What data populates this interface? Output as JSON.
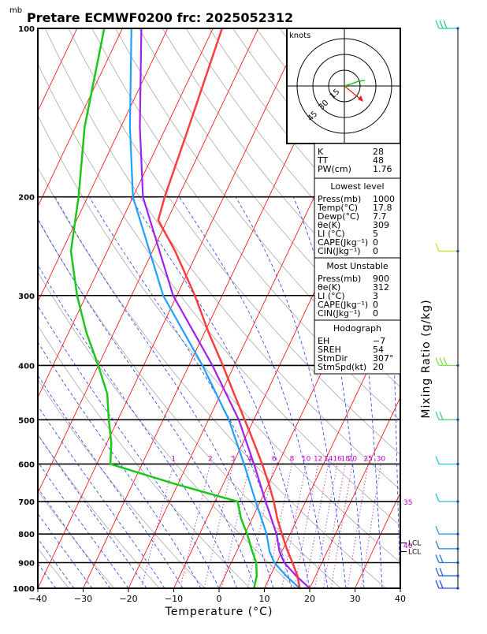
{
  "chart_data": {
    "type": "skew-t log-p sounding",
    "title": "Pretare ECMWF0200 frc: 2025052312",
    "pressure_unit_label": "mb",
    "xlabel": "Temperature (°C)",
    "right_label": "Mixing Ratio (g/kg)",
    "x_ticks": [
      -40,
      -30,
      -20,
      -10,
      0,
      10,
      20,
      30,
      40
    ],
    "xlim": [
      -40,
      40
    ],
    "p_ticks": [
      100,
      200,
      300,
      400,
      500,
      600,
      700,
      800,
      900,
      1000
    ],
    "plim": [
      100,
      1000
    ],
    "mixing_ratio_labels": [
      "1",
      "2",
      "3",
      "4",
      "6",
      "8",
      "10",
      "12",
      "14",
      "16",
      "18",
      "20",
      "25",
      "30"
    ],
    "mixing_ratio_values": [
      1,
      2,
      3,
      4,
      6,
      8,
      10,
      12,
      14,
      16,
      18,
      20,
      25,
      30
    ],
    "theta_e_labels": [
      "35",
      "40"
    ],
    "lcl_labels": [
      "LCL",
      "LCL"
    ],
    "lcl_pressures": [
      830,
      860
    ],
    "temperature_profile": {
      "p": [
        1000,
        950,
        900,
        850,
        800,
        750,
        700,
        650,
        600,
        550,
        500,
        450,
        400,
        350,
        300,
        250,
        220,
        200,
        150,
        100
      ],
      "t": [
        17.8,
        16.0,
        13.5,
        10.8,
        8.2,
        5.5,
        3.0,
        0.0,
        -3.5,
        -7.5,
        -12.0,
        -17.0,
        -22.5,
        -29.0,
        -36.0,
        -45.0,
        -52.0,
        -53.0,
        -55.0,
        -58.0
      ]
    },
    "dewpoint_profile": {
      "p": [
        1000,
        950,
        900,
        850,
        800,
        750,
        700,
        650,
        600,
        550,
        500,
        450,
        400,
        350,
        300,
        250,
        200,
        150,
        100
      ],
      "t": [
        7.7,
        7.0,
        5.5,
        3.0,
        0.5,
        -2.5,
        -5.0,
        -21.0,
        -37.0,
        -39.0,
        -42.0,
        -45.0,
        -50.0,
        -56.0,
        -62.0,
        -68.0,
        -72.0,
        -78.0,
        -84.0
      ]
    },
    "parcel_profile": {
      "p": [
        1000,
        950,
        900,
        860,
        800,
        700,
        600,
        500,
        400,
        300,
        200,
        150,
        100
      ],
      "t": [
        17.8,
        13.5,
        9.5,
        7.3,
        4.8,
        -1.0,
        -7.5,
        -15.5,
        -27.0,
        -43.0,
        -60.0,
        -68.0,
        -78.0
      ]
    },
    "hodograph": {
      "units_label": "knots",
      "ring_labels": [
        "15",
        "30",
        "45"
      ],
      "ring_values": [
        15,
        30,
        45
      ]
    },
    "indices": {
      "K": "28",
      "TT": "48",
      "PW(cm)": "1.76"
    },
    "lowest_level": {
      "header": "Lowest level",
      "rows": [
        {
          "label": "Press(mb)",
          "value": "1000"
        },
        {
          "label": "Temp(°C)",
          "value": "17.8"
        },
        {
          "label": "Dewp(°C)",
          "value": "7.7"
        },
        {
          "label": "θe(K)",
          "value": "309"
        },
        {
          "label": "LI (°C)",
          "value": "5"
        },
        {
          "label": "CAPE(Jkg⁻¹)",
          "value": "0"
        },
        {
          "label": "CIN(Jkg⁻¹)",
          "value": "0"
        }
      ]
    },
    "most_unstable": {
      "header": "Most Unstable",
      "rows": [
        {
          "label": "Press(mb)",
          "value": "900"
        },
        {
          "label": "θe(K)",
          "value": "312"
        },
        {
          "label": "LI (°C)",
          "value": "3"
        },
        {
          "label": "CAPE(Jkg⁻¹)",
          "value": "0"
        },
        {
          "label": "CIN(Jkg⁻¹)",
          "value": "0"
        }
      ]
    },
    "hodograph_params": {
      "header": "Hodograph",
      "rows": [
        {
          "label": "EH",
          "value": "−7"
        },
        {
          "label": "SREH",
          "value": "54"
        },
        {
          "label": "StmDir",
          "value": "307°"
        },
        {
          "label": "StmSpd(kt)",
          "value": "20"
        }
      ]
    },
    "colors": {
      "temperature": "#ff3c3c",
      "dewpoint": "#19c819",
      "parcel": "#a020f0",
      "env_blue": "#1ea0ff",
      "isotherm": "#ff0000",
      "dry_adiabat": "#aaaaaa",
      "moist_adiabat": "#1c3cff",
      "mixing_ratio": "#c000c0",
      "wind_barb": "#00b4c8"
    }
  }
}
